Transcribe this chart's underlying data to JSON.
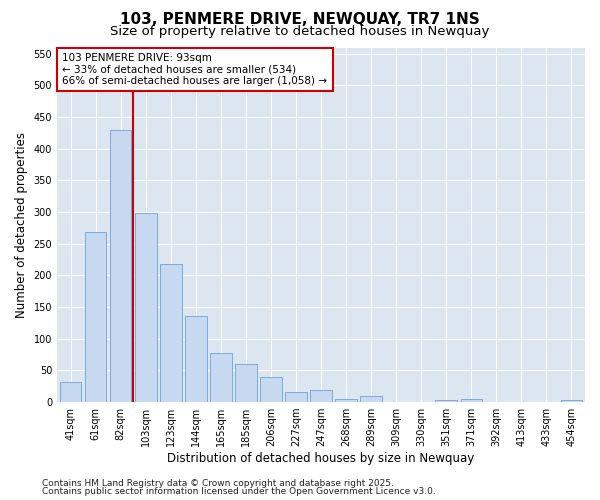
{
  "title": "103, PENMERE DRIVE, NEWQUAY, TR7 1NS",
  "subtitle": "Size of property relative to detached houses in Newquay",
  "xlabel": "Distribution of detached houses by size in Newquay",
  "ylabel": "Number of detached properties",
  "categories": [
    "41sqm",
    "61sqm",
    "82sqm",
    "103sqm",
    "123sqm",
    "144sqm",
    "165sqm",
    "185sqm",
    "206sqm",
    "227sqm",
    "247sqm",
    "268sqm",
    "289sqm",
    "309sqm",
    "330sqm",
    "351sqm",
    "371sqm",
    "392sqm",
    "413sqm",
    "433sqm",
    "454sqm"
  ],
  "values": [
    32,
    269,
    430,
    298,
    218,
    136,
    77,
    60,
    40,
    16,
    19,
    5,
    10,
    0,
    0,
    4,
    5,
    0,
    0,
    0,
    3
  ],
  "bar_color": "#c6d9f0",
  "bar_edge_color": "#7aabdb",
  "bg_color": "#dce6f1",
  "grid_color": "#ffffff",
  "red_line_x": 2.5,
  "annotation_line1": "103 PENMERE DRIVE: 93sqm",
  "annotation_line2": "← 33% of detached houses are smaller (534)",
  "annotation_line3": "66% of semi-detached houses are larger (1,058) →",
  "annotation_box_color": "#ffffff",
  "annotation_border_color": "#cc0000",
  "ylim": [
    0,
    560
  ],
  "yticks": [
    0,
    50,
    100,
    150,
    200,
    250,
    300,
    350,
    400,
    450,
    500,
    550
  ],
  "footer_line1": "Contains HM Land Registry data © Crown copyright and database right 2025.",
  "footer_line2": "Contains public sector information licensed under the Open Government Licence v3.0.",
  "title_fontsize": 11,
  "subtitle_fontsize": 9.5,
  "axis_label_fontsize": 8.5,
  "tick_fontsize": 7,
  "annotation_fontsize": 7.5,
  "footer_fontsize": 6.5
}
